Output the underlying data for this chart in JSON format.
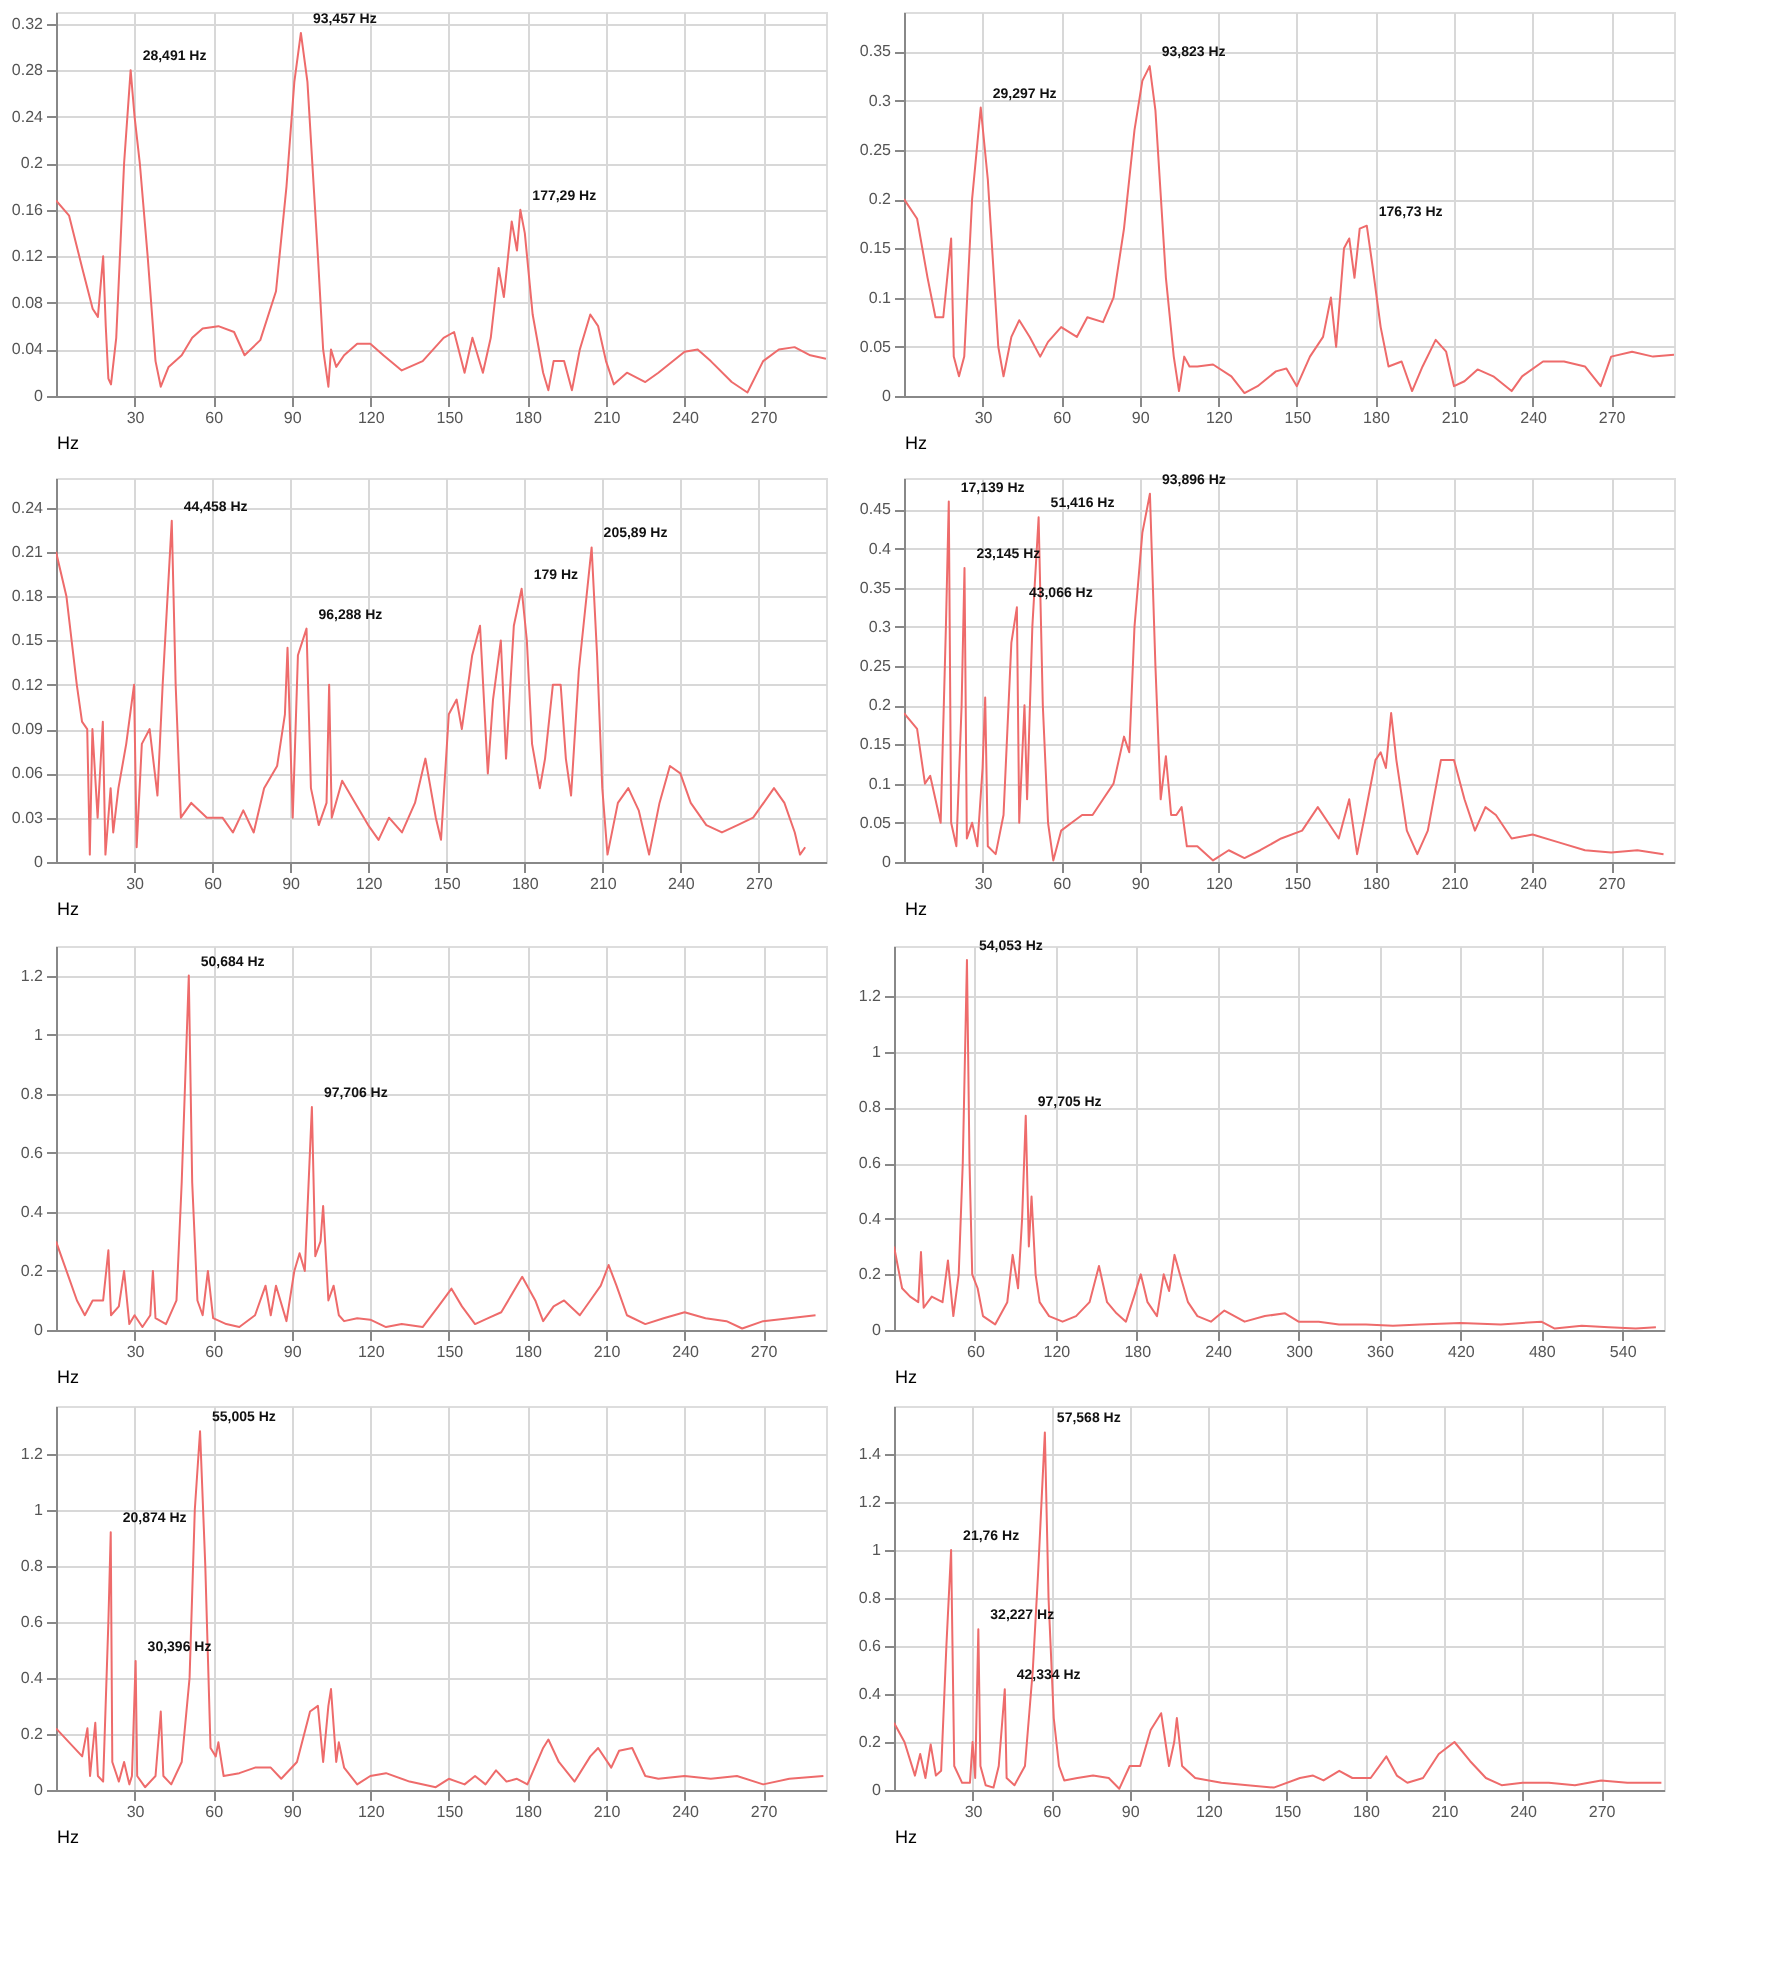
{
  "chart_data": [
    {
      "type": "line",
      "xlabel": "Hz",
      "color": "#ee6b6b",
      "grid": true,
      "xlim": [
        0,
        294
      ],
      "ylim": [
        0,
        0.33
      ],
      "xticks": [
        30,
        60,
        90,
        120,
        150,
        180,
        210,
        240,
        270
      ],
      "yticks": [
        0,
        0.04,
        0.08,
        0.12,
        0.16,
        0.2,
        0.24,
        0.28,
        0.32
      ],
      "x": [
        0,
        5,
        10,
        14,
        16,
        18,
        19,
        20,
        21,
        23,
        26,
        28.5,
        30,
        32,
        35,
        38,
        40,
        43,
        48,
        52,
        56,
        62,
        68,
        72,
        78,
        84,
        88,
        91,
        93.5,
        96,
        100,
        102,
        104,
        105,
        107,
        110,
        115,
        120,
        125,
        132,
        140,
        148,
        152,
        156,
        159,
        163,
        166,
        169,
        171,
        174,
        176,
        177.3,
        179,
        182,
        186,
        188,
        190,
        194,
        197,
        200,
        204,
        207,
        210,
        213,
        218,
        225,
        230,
        240,
        245,
        250,
        258,
        264,
        270,
        276,
        282,
        288,
        294
      ],
      "values": [
        0.168,
        0.155,
        0.11,
        0.075,
        0.068,
        0.12,
        0.06,
        0.015,
        0.01,
        0.05,
        0.2,
        0.28,
        0.24,
        0.2,
        0.12,
        0.03,
        0.008,
        0.025,
        0.035,
        0.05,
        0.058,
        0.06,
        0.055,
        0.035,
        0.048,
        0.09,
        0.18,
        0.27,
        0.312,
        0.27,
        0.12,
        0.04,
        0.008,
        0.04,
        0.025,
        0.035,
        0.045,
        0.045,
        0.035,
        0.022,
        0.03,
        0.05,
        0.055,
        0.02,
        0.05,
        0.02,
        0.05,
        0.11,
        0.085,
        0.15,
        0.125,
        0.16,
        0.14,
        0.07,
        0.02,
        0.005,
        0.03,
        0.03,
        0.005,
        0.04,
        0.07,
        0.06,
        0.03,
        0.01,
        0.02,
        0.012,
        0.02,
        0.038,
        0.04,
        0.03,
        0.012,
        0.003,
        0.03,
        0.04,
        0.042,
        0.035,
        0.032
      ],
      "annotations": [
        {
          "text": "28,491 Hz",
          "x": 28.5,
          "y": 0.28
        },
        {
          "text": "93,457 Hz",
          "x": 93.5,
          "y": 0.312
        },
        {
          "text": "177,29 Hz",
          "x": 177.3,
          "y": 0.16
        }
      ]
    },
    {
      "type": "line",
      "xlabel": "Hz",
      "color": "#ee6b6b",
      "grid": true,
      "xlim": [
        0,
        294
      ],
      "ylim": [
        0,
        0.39
      ],
      "xticks": [
        30,
        60,
        90,
        120,
        150,
        180,
        210,
        240,
        270
      ],
      "yticks": [
        0,
        0.05,
        0.1,
        0.15,
        0.2,
        0.25,
        0.3,
        0.35
      ],
      "x": [
        0,
        5,
        9,
        12,
        15,
        18,
        19,
        21,
        23,
        26,
        29.3,
        32,
        36,
        38,
        41,
        44,
        48,
        52,
        55,
        60,
        66,
        70,
        76,
        80,
        84,
        88,
        91,
        93.8,
        96,
        100,
        103,
        105,
        107,
        109,
        112,
        118,
        125,
        130,
        135,
        142,
        146,
        150,
        155,
        160,
        163,
        165,
        168,
        170,
        172,
        174,
        176.7,
        179,
        182,
        185,
        190,
        194,
        198,
        203,
        207,
        210,
        214,
        219,
        225,
        232,
        236,
        244,
        252,
        260,
        266,
        270,
        278,
        286,
        294
      ],
      "values": [
        0.2,
        0.18,
        0.12,
        0.08,
        0.08,
        0.16,
        0.04,
        0.02,
        0.04,
        0.2,
        0.293,
        0.22,
        0.05,
        0.02,
        0.06,
        0.077,
        0.06,
        0.04,
        0.055,
        0.07,
        0.06,
        0.08,
        0.075,
        0.1,
        0.17,
        0.27,
        0.32,
        0.335,
        0.29,
        0.12,
        0.04,
        0.005,
        0.04,
        0.03,
        0.03,
        0.032,
        0.02,
        0.003,
        0.01,
        0.025,
        0.028,
        0.01,
        0.04,
        0.06,
        0.1,
        0.05,
        0.15,
        0.16,
        0.12,
        0.17,
        0.173,
        0.13,
        0.07,
        0.03,
        0.035,
        0.005,
        0.03,
        0.057,
        0.045,
        0.01,
        0.015,
        0.027,
        0.02,
        0.005,
        0.02,
        0.035,
        0.035,
        0.03,
        0.01,
        0.04,
        0.045,
        0.04,
        0.042
      ],
      "annotations": [
        {
          "text": "29,297 Hz",
          "x": 29.3,
          "y": 0.293
        },
        {
          "text": "93,823 Hz",
          "x": 93.8,
          "y": 0.335
        },
        {
          "text": "176,73 Hz",
          "x": 176.7,
          "y": 0.173
        }
      ]
    },
    {
      "type": "line",
      "xlabel": "Hz",
      "color": "#ee6b6b",
      "grid": true,
      "xlim": [
        0,
        296
      ],
      "ylim": [
        0,
        0.26
      ],
      "xticks": [
        30,
        60,
        90,
        120,
        150,
        180,
        210,
        240,
        270
      ],
      "yticks": [
        0,
        0.03,
        0.06,
        0.09,
        0.12,
        0.15,
        0.18,
        0.21,
        0.24
      ],
      "x": [
        0,
        4,
        8,
        10,
        12,
        13,
        14,
        16,
        18,
        19,
        21,
        22,
        24,
        27,
        30,
        31,
        33,
        36,
        38,
        39,
        41,
        44.5,
        46,
        48,
        52,
        58,
        64,
        68,
        72,
        76,
        80,
        85,
        88,
        89,
        91,
        93,
        96.3,
        98,
        101,
        104,
        105,
        106,
        110,
        115,
        120,
        124,
        128,
        133,
        138,
        142,
        146,
        148,
        151,
        154,
        156,
        160,
        163,
        166,
        168,
        171,
        173,
        176,
        179,
        181,
        183,
        186,
        188,
        191,
        194,
        196,
        198,
        201,
        205.9,
        208,
        210,
        212,
        216,
        220,
        224,
        228,
        232,
        236,
        240,
        244,
        250,
        256,
        262,
        268,
        276,
        280,
        284,
        286,
        288
      ],
      "values": [
        0.21,
        0.18,
        0.12,
        0.095,
        0.09,
        0.005,
        0.09,
        0.03,
        0.095,
        0.005,
        0.05,
        0.02,
        0.05,
        0.08,
        0.12,
        0.01,
        0.08,
        0.09,
        0.06,
        0.045,
        0.12,
        0.231,
        0.12,
        0.03,
        0.04,
        0.03,
        0.03,
        0.02,
        0.035,
        0.02,
        0.05,
        0.065,
        0.1,
        0.145,
        0.03,
        0.14,
        0.158,
        0.05,
        0.025,
        0.04,
        0.12,
        0.03,
        0.055,
        0.04,
        0.025,
        0.015,
        0.03,
        0.02,
        0.04,
        0.07,
        0.03,
        0.015,
        0.1,
        0.11,
        0.09,
        0.14,
        0.16,
        0.06,
        0.11,
        0.15,
        0.07,
        0.16,
        0.185,
        0.15,
        0.08,
        0.05,
        0.07,
        0.12,
        0.12,
        0.07,
        0.045,
        0.13,
        0.213,
        0.14,
        0.05,
        0.005,
        0.04,
        0.05,
        0.035,
        0.005,
        0.04,
        0.065,
        0.06,
        0.04,
        0.025,
        0.02,
        0.025,
        0.03,
        0.05,
        0.04,
        0.02,
        0.005,
        0.01
      ],
      "annotations": [
        {
          "text": "44,458 Hz",
          "x": 44.5,
          "y": 0.231
        },
        {
          "text": "96,288 Hz",
          "x": 96.3,
          "y": 0.158
        },
        {
          "text": "179 Hz",
          "x": 179,
          "y": 0.185
        },
        {
          "text": "205,89 Hz",
          "x": 205.9,
          "y": 0.213
        }
      ]
    },
    {
      "type": "line",
      "xlabel": "Hz",
      "color": "#ee6b6b",
      "grid": true,
      "xlim": [
        0,
        294
      ],
      "ylim": [
        0,
        0.49
      ],
      "xticks": [
        30,
        60,
        90,
        120,
        150,
        180,
        210,
        240,
        270
      ],
      "yticks": [
        0,
        0.05,
        0.1,
        0.15,
        0.2,
        0.25,
        0.3,
        0.35,
        0.4,
        0.45
      ],
      "x": [
        0,
        5,
        8,
        10,
        12,
        14,
        16,
        17.1,
        18,
        20,
        22,
        23.1,
        24,
        26,
        28,
        30,
        31,
        32,
        35,
        38,
        41,
        43.1,
        44,
        46,
        47,
        49,
        51.4,
        53,
        55,
        57,
        60,
        64,
        68,
        72,
        76,
        80,
        84,
        86,
        88,
        91,
        93.9,
        96,
        98,
        100,
        102,
        104,
        106,
        108,
        112,
        118,
        124,
        130,
        136,
        144,
        152,
        158,
        162,
        166,
        170,
        173,
        176,
        180,
        182,
        184,
        186,
        188,
        192,
        196,
        200,
        205,
        210,
        214,
        218,
        222,
        226,
        232,
        240,
        250,
        260,
        270,
        280,
        290
      ],
      "values": [
        0.19,
        0.17,
        0.1,
        0.11,
        0.08,
        0.05,
        0.3,
        0.46,
        0.05,
        0.02,
        0.2,
        0.375,
        0.03,
        0.05,
        0.02,
        0.12,
        0.21,
        0.02,
        0.01,
        0.06,
        0.28,
        0.325,
        0.05,
        0.2,
        0.08,
        0.3,
        0.44,
        0.2,
        0.05,
        0.002,
        0.04,
        0.05,
        0.06,
        0.06,
        0.08,
        0.1,
        0.16,
        0.14,
        0.3,
        0.42,
        0.47,
        0.25,
        0.08,
        0.135,
        0.06,
        0.06,
        0.07,
        0.02,
        0.02,
        0.002,
        0.015,
        0.005,
        0.015,
        0.03,
        0.04,
        0.07,
        0.05,
        0.03,
        0.08,
        0.01,
        0.06,
        0.13,
        0.14,
        0.12,
        0.19,
        0.13,
        0.04,
        0.01,
        0.04,
        0.13,
        0.13,
        0.08,
        0.04,
        0.07,
        0.06,
        0.03,
        0.035,
        0.025,
        0.015,
        0.012,
        0.015,
        0.01
      ],
      "annotations": [
        {
          "text": "17,139 Hz",
          "x": 17.1,
          "y": 0.46
        },
        {
          "text": "23,145 Hz",
          "x": 23.1,
          "y": 0.375
        },
        {
          "text": "43,066 Hz",
          "x": 43.1,
          "y": 0.325
        },
        {
          "text": "51,416 Hz",
          "x": 51.4,
          "y": 0.44
        },
        {
          "text": "93,896 Hz",
          "x": 93.9,
          "y": 0.47
        }
      ]
    },
    {
      "type": "line",
      "xlabel": "Hz",
      "color": "#ee6b6b",
      "grid": true,
      "xlim": [
        0,
        294
      ],
      "ylim": [
        0,
        1.3
      ],
      "xticks": [
        30,
        60,
        90,
        120,
        150,
        180,
        210,
        240,
        270
      ],
      "yticks": [
        0,
        0.2,
        0.4,
        0.6,
        0.8,
        1,
        1.2
      ],
      "x": [
        0,
        4,
        8,
        11,
        14,
        18,
        20,
        21,
        24,
        26,
        28,
        30,
        33,
        36,
        37,
        38,
        42,
        46,
        48,
        50.7,
        52,
        54,
        56,
        58,
        60,
        65,
        70,
        76,
        80,
        82,
        84,
        88,
        91,
        93,
        95,
        97.7,
        99,
        101,
        102,
        104,
        106,
        108,
        110,
        115,
        120,
        126,
        132,
        140,
        146,
        151,
        155,
        160,
        165,
        170,
        178,
        183,
        186,
        190,
        194,
        200,
        204,
        208,
        211,
        214,
        218,
        225,
        232,
        240,
        248,
        256,
        262,
        270,
        280,
        290
      ],
      "values": [
        0.3,
        0.2,
        0.1,
        0.05,
        0.1,
        0.1,
        0.27,
        0.05,
        0.08,
        0.2,
        0.02,
        0.05,
        0.01,
        0.05,
        0.2,
        0.04,
        0.02,
        0.1,
        0.5,
        1.2,
        0.5,
        0.1,
        0.05,
        0.2,
        0.04,
        0.02,
        0.01,
        0.05,
        0.15,
        0.05,
        0.15,
        0.03,
        0.2,
        0.26,
        0.2,
        0.755,
        0.25,
        0.3,
        0.42,
        0.1,
        0.15,
        0.05,
        0.03,
        0.04,
        0.035,
        0.01,
        0.02,
        0.01,
        0.08,
        0.14,
        0.08,
        0.02,
        0.04,
        0.06,
        0.18,
        0.1,
        0.03,
        0.08,
        0.1,
        0.05,
        0.1,
        0.15,
        0.22,
        0.15,
        0.05,
        0.02,
        0.04,
        0.06,
        0.04,
        0.03,
        0.005,
        0.03,
        0.04,
        0.05
      ],
      "annotations": [
        {
          "text": "50,684 Hz",
          "x": 50.7,
          "y": 1.2
        },
        {
          "text": "97,706 Hz",
          "x": 97.7,
          "y": 0.755
        }
      ]
    },
    {
      "type": "line",
      "xlabel": "Hz",
      "color": "#ee6b6b",
      "grid": true,
      "xlim": [
        0,
        571
      ],
      "ylim": [
        0,
        1.38
      ],
      "xticks": [
        60,
        120,
        180,
        240,
        300,
        360,
        420,
        480,
        540
      ],
      "yticks": [
        0,
        0.2,
        0.4,
        0.6,
        0.8,
        1,
        1.2
      ],
      "x": [
        0,
        6,
        12,
        18,
        20,
        22,
        28,
        36,
        40,
        44,
        48,
        51,
        54.1,
        56,
        58,
        62,
        66,
        75,
        84,
        88,
        92,
        95,
        97.7,
        100,
        102,
        105,
        108,
        115,
        125,
        135,
        145,
        152,
        158,
        165,
        172,
        178,
        183,
        188,
        195,
        200,
        204,
        208,
        212,
        218,
        225,
        235,
        245,
        260,
        275,
        290,
        300,
        315,
        330,
        350,
        370,
        390,
        420,
        450,
        480,
        490,
        510,
        530,
        550,
        565
      ],
      "values": [
        0.3,
        0.15,
        0.12,
        0.1,
        0.28,
        0.08,
        0.12,
        0.1,
        0.25,
        0.05,
        0.2,
        0.6,
        1.33,
        0.6,
        0.2,
        0.15,
        0.05,
        0.02,
        0.1,
        0.27,
        0.15,
        0.4,
        0.77,
        0.3,
        0.48,
        0.2,
        0.1,
        0.05,
        0.03,
        0.05,
        0.1,
        0.23,
        0.1,
        0.06,
        0.03,
        0.12,
        0.2,
        0.1,
        0.05,
        0.2,
        0.14,
        0.27,
        0.2,
        0.1,
        0.05,
        0.03,
        0.07,
        0.03,
        0.05,
        0.06,
        0.03,
        0.03,
        0.02,
        0.02,
        0.015,
        0.02,
        0.025,
        0.02,
        0.03,
        0.005,
        0.015,
        0.01,
        0.005,
        0.01
      ],
      "annotations": [
        {
          "text": "54,053 Hz",
          "x": 54.1,
          "y": 1.33
        },
        {
          "text": "97,705 Hz",
          "x": 97.7,
          "y": 0.77
        }
      ]
    },
    {
      "type": "line",
      "xlabel": "Hz",
      "color": "#ee6b6b",
      "grid": true,
      "xlim": [
        0,
        294
      ],
      "ylim": [
        0,
        1.37
      ],
      "xticks": [
        30,
        60,
        90,
        120,
        150,
        180,
        210,
        240,
        270
      ],
      "yticks": [
        0,
        0.2,
        0.4,
        0.6,
        0.8,
        1,
        1.2
      ],
      "x": [
        0,
        5,
        10,
        12,
        13,
        15,
        16,
        18,
        20,
        20.9,
        21.5,
        24,
        26,
        28,
        29,
        30.4,
        31,
        34,
        38,
        40,
        41,
        44,
        48,
        51,
        53,
        55,
        57,
        59,
        61,
        62,
        64,
        70,
        76,
        82,
        86,
        92,
        97,
        100,
        102,
        104,
        105,
        107,
        108,
        110,
        115,
        120,
        126,
        135,
        145,
        150,
        156,
        160,
        164,
        168,
        172,
        176,
        180,
        186,
        188,
        192,
        198,
        204,
        207,
        212,
        215,
        220,
        225,
        230,
        240,
        250,
        260,
        270,
        280,
        293
      ],
      "values": [
        0.22,
        0.17,
        0.12,
        0.22,
        0.05,
        0.24,
        0.05,
        0.03,
        0.6,
        0.92,
        0.1,
        0.03,
        0.1,
        0.02,
        0.05,
        0.46,
        0.05,
        0.01,
        0.05,
        0.28,
        0.05,
        0.02,
        0.1,
        0.4,
        1.0,
        1.28,
        0.8,
        0.15,
        0.12,
        0.17,
        0.05,
        0.06,
        0.08,
        0.08,
        0.04,
        0.1,
        0.28,
        0.3,
        0.1,
        0.3,
        0.36,
        0.1,
        0.17,
        0.08,
        0.02,
        0.05,
        0.06,
        0.03,
        0.01,
        0.04,
        0.02,
        0.05,
        0.02,
        0.07,
        0.03,
        0.04,
        0.02,
        0.15,
        0.18,
        0.1,
        0.03,
        0.12,
        0.15,
        0.08,
        0.14,
        0.15,
        0.05,
        0.04,
        0.05,
        0.04,
        0.05,
        0.02,
        0.04,
        0.05
      ],
      "annotations": [
        {
          "text": "20,874 Hz",
          "x": 20.9,
          "y": 0.92
        },
        {
          "text": "30,396 Hz",
          "x": 30.4,
          "y": 0.46
        },
        {
          "text": "55,005 Hz",
          "x": 55,
          "y": 1.28
        }
      ]
    },
    {
      "type": "line",
      "xlabel": "Hz",
      "color": "#ee6b6b",
      "grid": true,
      "xlim": [
        0,
        294
      ],
      "ylim": [
        0,
        1.6
      ],
      "xticks": [
        30,
        60,
        90,
        120,
        150,
        180,
        210,
        240,
        270
      ],
      "yticks": [
        0,
        0.2,
        0.4,
        0.6,
        0.8,
        1,
        1.2,
        1.4
      ],
      "x": [
        0,
        4,
        8,
        10,
        12,
        14,
        16,
        18,
        20,
        21.8,
        23,
        26,
        29,
        30,
        31,
        32.2,
        33,
        35,
        38,
        40,
        42.3,
        43,
        46,
        50,
        53,
        55,
        57.6,
        59,
        61,
        63,
        65,
        70,
        76,
        82,
        86,
        90,
        94,
        98,
        102,
        105,
        107,
        108,
        110,
        115,
        125,
        135,
        145,
        155,
        160,
        164,
        170,
        175,
        182,
        188,
        192,
        196,
        202,
        208,
        214,
        220,
        226,
        232,
        240,
        250,
        260,
        270,
        280,
        293
      ],
      "values": [
        0.28,
        0.2,
        0.06,
        0.15,
        0.05,
        0.19,
        0.06,
        0.08,
        0.6,
        1.0,
        0.1,
        0.03,
        0.03,
        0.2,
        0.05,
        0.67,
        0.1,
        0.02,
        0.01,
        0.1,
        0.42,
        0.05,
        0.02,
        0.1,
        0.5,
        0.9,
        1.49,
        0.8,
        0.3,
        0.1,
        0.04,
        0.05,
        0.06,
        0.05,
        0.005,
        0.1,
        0.1,
        0.25,
        0.32,
        0.1,
        0.2,
        0.3,
        0.1,
        0.05,
        0.03,
        0.02,
        0.01,
        0.05,
        0.06,
        0.04,
        0.08,
        0.05,
        0.05,
        0.14,
        0.06,
        0.03,
        0.05,
        0.15,
        0.2,
        0.12,
        0.05,
        0.02,
        0.03,
        0.03,
        0.02,
        0.04,
        0.03,
        0.03
      ],
      "annotations": [
        {
          "text": "21,76 Hz",
          "x": 21.8,
          "y": 1.0
        },
        {
          "text": "32,227 Hz",
          "x": 32.2,
          "y": 0.67
        },
        {
          "text": "42,334 Hz",
          "x": 42.3,
          "y": 0.42
        },
        {
          "text": "57,568 Hz",
          "x": 57.6,
          "y": 1.49
        }
      ]
    }
  ]
}
